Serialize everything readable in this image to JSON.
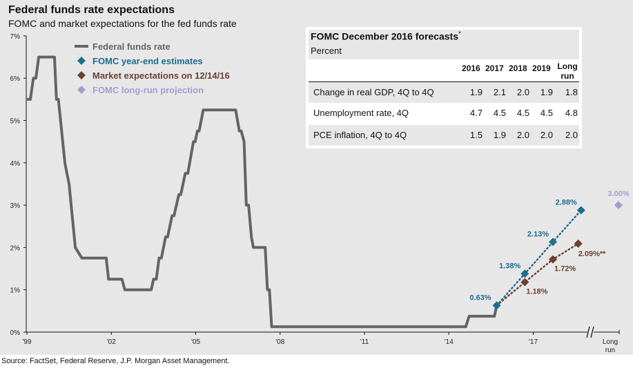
{
  "header": {
    "title": "Federal funds rate expectations",
    "subtitle": "FOMC and market expectations for the fed funds rate"
  },
  "footer": {
    "source": "Source: FactSet, Federal Reserve, J.P. Morgan Asset Management."
  },
  "table": {
    "title": "FOMC December 2016 forecasts",
    "title_mark": "*",
    "unit": "Percent",
    "columns": [
      "2016",
      "2017",
      "2018",
      "2019"
    ],
    "long_run_line1": "Long",
    "long_run_line2": "run",
    "rows": [
      {
        "label": "Change in real GDP, 4Q to 4Q",
        "values": [
          "1.9",
          "2.1",
          "2.0",
          "1.9",
          "1.8"
        ]
      },
      {
        "label": "Unemployment rate, 4Q",
        "values": [
          "4.7",
          "4.5",
          "4.5",
          "4.5",
          "4.8"
        ]
      },
      {
        "label": "PCE inflation, 4Q to 4Q",
        "values": [
          "1.5",
          "1.9",
          "2.0",
          "2.0",
          "2.0"
        ]
      }
    ]
  },
  "colors": {
    "fed_funds": "#646464",
    "fomc": "#1f6c8e",
    "market": "#6b3f32",
    "long_run": "#a99bd1"
  },
  "chart_data": {
    "type": "line",
    "title": "Federal funds rate expectations",
    "subtitle": "FOMC and market expectations for the fed funds rate",
    "xlabel": "",
    "ylabel": "",
    "ylim": [
      0,
      7
    ],
    "xlim": [
      1999,
      2019
    ],
    "y_ticks": [
      "0%",
      "1%",
      "2%",
      "3%",
      "4%",
      "5%",
      "6%",
      "7%"
    ],
    "x_ticks": [
      {
        "value": 1999,
        "label": "'99"
      },
      {
        "value": 2002,
        "label": "'02"
      },
      {
        "value": 2005,
        "label": "'05"
      },
      {
        "value": 2008,
        "label": "'08"
      },
      {
        "value": 2011,
        "label": "'11"
      },
      {
        "value": 2014,
        "label": "'14"
      },
      {
        "value": 2017,
        "label": "'17"
      }
    ],
    "long_run_tick": {
      "line1": "Long",
      "line2": "run"
    },
    "grid": false,
    "legend_position": "top-left",
    "legend": [
      {
        "name": "Federal funds rate",
        "marker": "line",
        "color_key": "fed_funds"
      },
      {
        "name": "FOMC year-end estimates",
        "marker": "diamond",
        "color_key": "fomc"
      },
      {
        "name": "Market expectations on 12/14/16",
        "marker": "diamond",
        "color_key": "market"
      },
      {
        "name": "FOMC long-run projection",
        "marker": "diamond",
        "color_key": "long_run"
      }
    ],
    "series": [
      {
        "name": "Federal funds rate",
        "points": [
          [
            1999.0,
            5.5
          ],
          [
            1999.12,
            5.5
          ],
          [
            1999.23,
            6.0
          ],
          [
            1999.32,
            6.0
          ],
          [
            1999.42,
            6.5
          ],
          [
            1999.98,
            6.5
          ],
          [
            2000.05,
            5.5
          ],
          [
            2000.12,
            5.5
          ],
          [
            2000.35,
            4.0
          ],
          [
            2000.42,
            3.75
          ],
          [
            2000.5,
            3.5
          ],
          [
            2000.72,
            2.0
          ],
          [
            2000.95,
            1.75
          ],
          [
            2001.82,
            1.75
          ],
          [
            2001.9,
            1.25
          ],
          [
            2002.38,
            1.25
          ],
          [
            2002.48,
            1.0
          ],
          [
            2003.42,
            1.0
          ],
          [
            2003.5,
            1.25
          ],
          [
            2003.6,
            1.25
          ],
          [
            2003.7,
            1.75
          ],
          [
            2003.78,
            1.75
          ],
          [
            2003.93,
            2.25
          ],
          [
            2004.0,
            2.25
          ],
          [
            2004.16,
            2.75
          ],
          [
            2004.23,
            2.75
          ],
          [
            2004.4,
            3.25
          ],
          [
            2004.47,
            3.25
          ],
          [
            2004.63,
            3.75
          ],
          [
            2004.72,
            3.75
          ],
          [
            2004.92,
            4.5
          ],
          [
            2004.98,
            4.5
          ],
          [
            2005.06,
            4.75
          ],
          [
            2005.12,
            4.75
          ],
          [
            2005.27,
            5.25
          ],
          [
            2006.42,
            5.25
          ],
          [
            2006.55,
            4.75
          ],
          [
            2006.62,
            4.75
          ],
          [
            2006.72,
            4.5
          ],
          [
            2006.8,
            3.0
          ],
          [
            2006.88,
            3.0
          ],
          [
            2006.98,
            2.25
          ],
          [
            2007.05,
            2.0
          ],
          [
            2007.47,
            2.0
          ],
          [
            2007.55,
            1.0
          ],
          [
            2007.62,
            1.0
          ],
          [
            2007.7,
            0.125
          ],
          [
            2014.6,
            0.125
          ],
          [
            2014.72,
            0.375
          ],
          [
            2015.62,
            0.375
          ],
          [
            2015.7,
            0.63
          ]
        ]
      },
      {
        "name": "FOMC year-end estimates",
        "points": [
          [
            2015.7,
            0.63
          ],
          [
            2016.7,
            1.38
          ],
          [
            2017.7,
            2.13
          ],
          [
            2018.7,
            2.88
          ]
        ],
        "labels": [
          "0.63%",
          "1.38%",
          "2.13%",
          "2.88%"
        ]
      },
      {
        "name": "Market expectations on 12/14/16",
        "points": [
          [
            2016.7,
            1.18
          ],
          [
            2017.7,
            1.72
          ],
          [
            2018.6,
            2.09
          ]
        ],
        "labels": [
          "1.18%",
          "1.72%",
          "2.09%**"
        ]
      },
      {
        "name": "FOMC long-run projection",
        "points": [
          [
            "Long run",
            3.0
          ]
        ],
        "labels": [
          "3.00%"
        ]
      }
    ]
  }
}
